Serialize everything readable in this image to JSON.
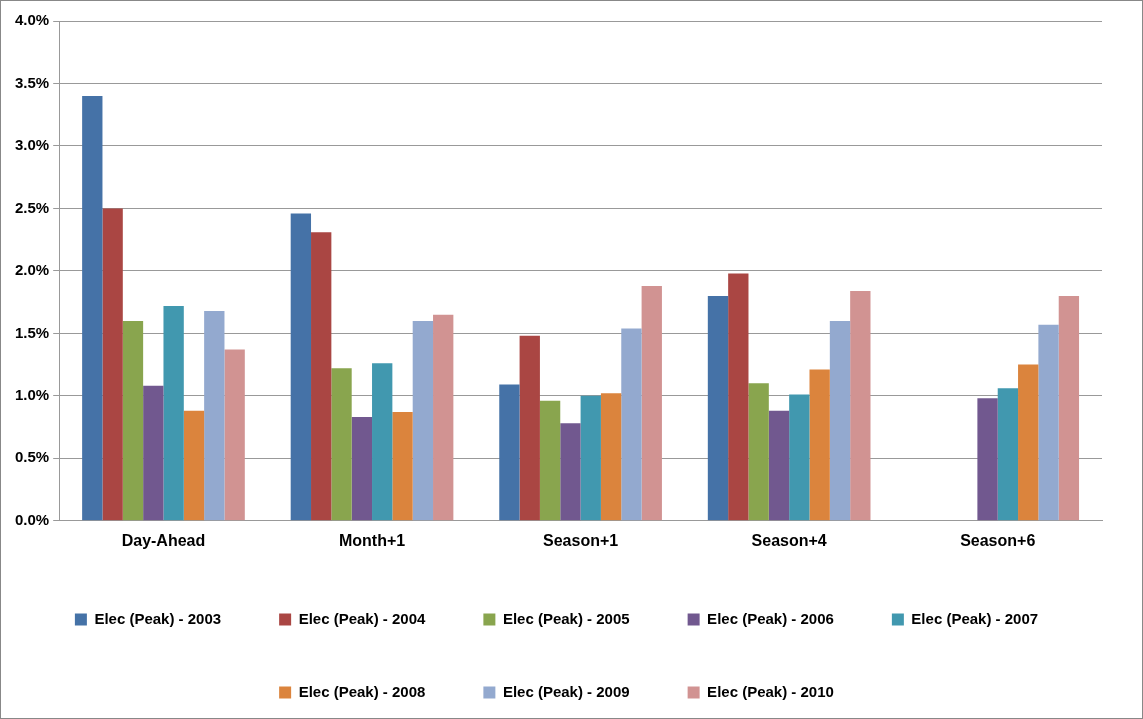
{
  "chart_data": {
    "type": "bar",
    "categories": [
      "Day-Ahead",
      "Month+1",
      "Season+1",
      "Season+4",
      "Season+6"
    ],
    "series": [
      {
        "name": "Elec (Peak) - 2003",
        "color": "#4572a7",
        "values": [
          3.4,
          2.46,
          1.09,
          1.8,
          null
        ]
      },
      {
        "name": "Elec (Peak) - 2004",
        "color": "#aa4643",
        "values": [
          2.5,
          2.31,
          1.48,
          1.98,
          null
        ]
      },
      {
        "name": "Elec (Peak) - 2005",
        "color": "#89a54e",
        "values": [
          1.6,
          1.22,
          0.96,
          1.1,
          null
        ]
      },
      {
        "name": "Elec (Peak) - 2006",
        "color": "#71588f",
        "values": [
          1.08,
          0.83,
          0.78,
          0.88,
          0.98
        ]
      },
      {
        "name": "Elec (Peak) - 2007",
        "color": "#4198af",
        "values": [
          1.72,
          1.26,
          1.0,
          1.01,
          1.06
        ]
      },
      {
        "name": "Elec (Peak) - 2008",
        "color": "#db843d",
        "values": [
          0.88,
          0.87,
          1.02,
          1.21,
          1.25
        ]
      },
      {
        "name": "Elec (Peak) - 2009",
        "color": "#93a9cf",
        "values": [
          1.68,
          1.6,
          1.54,
          1.6,
          1.57
        ]
      },
      {
        "name": "Elec (Peak) - 2010",
        "color": "#d19392",
        "values": [
          1.37,
          1.65,
          1.88,
          1.84,
          1.8
        ]
      }
    ],
    "ylim": [
      0,
      4
    ],
    "yticks": [
      {
        "value": 0,
        "label": "0.0%"
      },
      {
        "value": 0.5,
        "label": "0.5%"
      },
      {
        "value": 1,
        "label": "1.0%"
      },
      {
        "value": 1.5,
        "label": "1.5%"
      },
      {
        "value": 2,
        "label": "2.0%"
      },
      {
        "value": 2.5,
        "label": "2.5%"
      },
      {
        "value": 3,
        "label": "3.0%"
      },
      {
        "value": 3.5,
        "label": "3.5%"
      },
      {
        "value": 4,
        "label": "4.0%"
      }
    ],
    "grid": "y",
    "legend": "bottom"
  }
}
